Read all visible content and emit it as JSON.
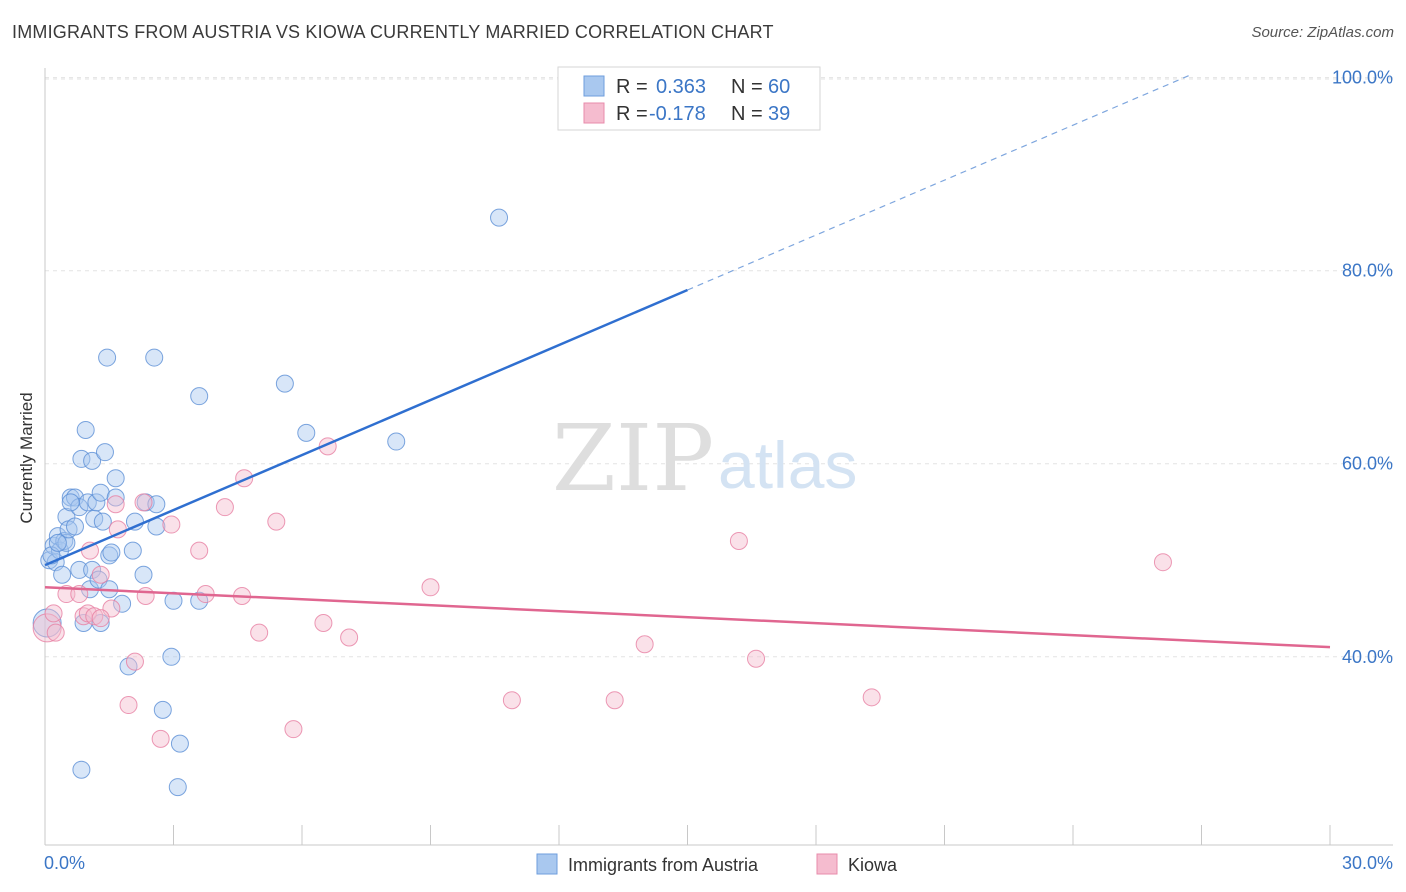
{
  "chart_data": {
    "type": "scatter",
    "title": "IMMIGRANTS FROM AUSTRIA VS KIOWA CURRENTLY MARRIED CORRELATION CHART",
    "source": "Source: ZipAtlas.com",
    "xlabel": "",
    "ylabel": "Currently Married",
    "xlim": [
      0,
      30
    ],
    "ylim": [
      20.5,
      101
    ],
    "x_tick_labels": {
      "left": "0.0%",
      "right": "30.0%"
    },
    "y_ticks": [
      {
        "value": 40,
        "label": "40.0%"
      },
      {
        "value": 60,
        "label": "60.0%"
      },
      {
        "value": 80,
        "label": "80.0%"
      },
      {
        "value": 100,
        "label": "100.0%"
      }
    ],
    "watermark": {
      "zip": "ZIP",
      "atlas": "atlas"
    },
    "legend_top": [
      {
        "r_label": "R =",
        "r_value": "0.363",
        "n_label": "N =",
        "n_value": "60"
      },
      {
        "r_label": "R =",
        "r_value": "-0.178",
        "n_label": "N =",
        "n_value": "39"
      }
    ],
    "series": [
      {
        "name": "Immigrants from Austria",
        "color": "#a9c8ef",
        "stroke": "#5b8fd6",
        "trend_color": "#2f6fd0",
        "trend": {
          "x0": 0.0,
          "y0": 49.5,
          "x1": 15.0,
          "y1": 78.0,
          "dash_x1": 26.7,
          "dash_y1": 100.2
        },
        "points": [
          [
            0.1,
            50.0
          ],
          [
            0.2,
            51.5
          ],
          [
            0.25,
            49.8
          ],
          [
            0.3,
            52.5
          ],
          [
            0.35,
            51.0
          ],
          [
            0.4,
            48.5
          ],
          [
            0.45,
            52.0
          ],
          [
            0.5,
            54.5
          ],
          [
            0.5,
            51.8
          ],
          [
            0.55,
            53.2
          ],
          [
            0.6,
            56.5
          ],
          [
            0.7,
            53.5
          ],
          [
            0.7,
            56.5
          ],
          [
            0.8,
            55.5
          ],
          [
            0.8,
            49.0
          ],
          [
            0.85,
            60.5
          ],
          [
            0.9,
            43.5
          ],
          [
            0.95,
            63.5
          ],
          [
            1.0,
            56.0
          ],
          [
            1.05,
            47.0
          ],
          [
            1.1,
            49.0
          ],
          [
            1.1,
            60.3
          ],
          [
            1.15,
            54.3
          ],
          [
            1.2,
            56.0
          ],
          [
            1.25,
            48.0
          ],
          [
            1.3,
            43.5
          ],
          [
            1.3,
            57.0
          ],
          [
            1.35,
            54.0
          ],
          [
            1.4,
            61.2
          ],
          [
            1.45,
            71.0
          ],
          [
            1.5,
            47.0
          ],
          [
            1.5,
            50.5
          ],
          [
            1.55,
            50.8
          ],
          [
            1.65,
            58.5
          ],
          [
            1.65,
            56.5
          ],
          [
            1.8,
            45.5
          ],
          [
            1.95,
            39.0
          ],
          [
            2.05,
            51.0
          ],
          [
            2.1,
            54.0
          ],
          [
            2.3,
            48.5
          ],
          [
            2.35,
            56.0
          ],
          [
            2.55,
            71.0
          ],
          [
            2.6,
            53.5
          ],
          [
            2.6,
            55.8
          ],
          [
            2.75,
            34.5
          ],
          [
            2.95,
            40.0
          ],
          [
            3.0,
            45.8
          ],
          [
            3.15,
            31.0
          ],
          [
            3.1,
            26.5
          ],
          [
            3.6,
            45.8
          ],
          [
            3.6,
            67.0
          ],
          [
            5.6,
            68.3
          ],
          [
            6.1,
            63.2
          ],
          [
            8.2,
            62.3
          ],
          [
            10.6,
            85.5
          ],
          [
            0.85,
            28.3
          ],
          [
            0.6,
            56.0
          ],
          [
            0.15,
            50.5
          ],
          [
            0.3,
            51.8
          ],
          [
            0.05,
            43.5
          ]
        ]
      },
      {
        "name": "Kiowa",
        "color": "#f5bccf",
        "stroke": "#e77fa3",
        "trend_color": "#e06690",
        "trend": {
          "x0": 0.0,
          "y0": 47.2,
          "x1": 30.0,
          "y1": 41.0
        },
        "points": [
          [
            0.05,
            43.0
          ],
          [
            0.2,
            44.5
          ],
          [
            0.25,
            42.5
          ],
          [
            0.5,
            46.5
          ],
          [
            0.8,
            46.5
          ],
          [
            0.9,
            44.2
          ],
          [
            1.0,
            44.5
          ],
          [
            1.05,
            51.0
          ],
          [
            1.15,
            44.2
          ],
          [
            1.3,
            48.5
          ],
          [
            1.55,
            45.0
          ],
          [
            1.65,
            55.8
          ],
          [
            1.7,
            53.2
          ],
          [
            1.95,
            35.0
          ],
          [
            2.1,
            39.5
          ],
          [
            2.3,
            56.0
          ],
          [
            2.35,
            46.3
          ],
          [
            2.7,
            31.5
          ],
          [
            2.95,
            53.7
          ],
          [
            3.6,
            51.0
          ],
          [
            3.75,
            46.5
          ],
          [
            4.2,
            55.5
          ],
          [
            4.65,
            58.5
          ],
          [
            4.6,
            46.3
          ],
          [
            5.0,
            42.5
          ],
          [
            5.4,
            54.0
          ],
          [
            5.8,
            32.5
          ],
          [
            6.5,
            43.5
          ],
          [
            6.6,
            61.8
          ],
          [
            7.1,
            42.0
          ],
          [
            9.0,
            47.2
          ],
          [
            10.9,
            35.5
          ],
          [
            13.3,
            35.5
          ],
          [
            14.0,
            41.3
          ],
          [
            16.2,
            52.0
          ],
          [
            16.6,
            39.8
          ],
          [
            19.3,
            35.8
          ],
          [
            26.1,
            49.8
          ],
          [
            1.3,
            44.0
          ]
        ]
      }
    ],
    "legend_bottom": [
      "Immigrants from Austria",
      "Kiowa"
    ]
  }
}
